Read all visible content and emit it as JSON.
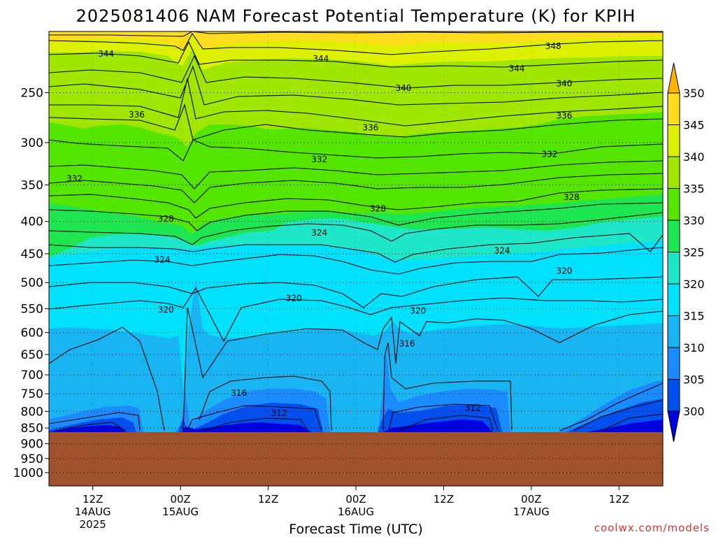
{
  "title": "2025081406 NAM Forecast Potential Temperature (K) for KPIH",
  "credit": "coolwx.com/models",
  "chart_data": {
    "type": "heatmap",
    "title": "2025081406 NAM Forecast Potential Temperature (K) for KPIH",
    "xlabel": "Forecast Time (UTC)",
    "ylabel": "",
    "x_ticks": [
      {
        "label": "12Z",
        "date": "14AUG",
        "year": "2025",
        "hour": 6
      },
      {
        "label": "00Z",
        "date": "15AUG",
        "year": "",
        "hour": 18
      },
      {
        "label": "12Z",
        "date": "",
        "year": "",
        "hour": 30
      },
      {
        "label": "00Z",
        "date": "16AUG",
        "year": "",
        "hour": 42
      },
      {
        "label": "12Z",
        "date": "",
        "year": "",
        "hour": 54
      },
      {
        "label": "00Z",
        "date": "17AUG",
        "year": "",
        "hour": 66
      },
      {
        "label": "12Z",
        "date": "",
        "year": "",
        "hour": 78
      }
    ],
    "x_range_hours": [
      0,
      84
    ],
    "y_ticks": [
      250,
      300,
      350,
      400,
      450,
      500,
      550,
      600,
      650,
      700,
      750,
      800,
      850,
      900,
      950,
      1000
    ],
    "y_range_hPa": [
      200,
      1050
    ],
    "y_scale": "log",
    "grid": true,
    "surface_pressure_hPa": 862,
    "colorbar": {
      "levels": [
        300,
        305,
        310,
        315,
        320,
        325,
        330,
        335,
        340,
        345,
        350
      ],
      "colors": [
        "#0000e0",
        "#0050f0",
        "#1a8cff",
        "#19b4f2",
        "#00e1ff",
        "#1ee6c8",
        "#1ee650",
        "#55e600",
        "#a0e600",
        "#dcf000",
        "#ffdc1e",
        "#ffb400"
      ]
    },
    "contour_levels": [
      312,
      316,
      320,
      324,
      328,
      332,
      336,
      340,
      344,
      348
    ],
    "contour_labels": [
      {
        "value": 344,
        "hour": 7.8,
        "p": 217
      },
      {
        "value": 344,
        "hour": 37.2,
        "p": 221
      },
      {
        "value": 348,
        "hour": 69.0,
        "p": 211
      },
      {
        "value": 344,
        "hour": 64.0,
        "p": 229
      },
      {
        "value": 340,
        "hour": 48.5,
        "p": 246
      },
      {
        "value": 340,
        "hour": 70.5,
        "p": 242
      },
      {
        "value": 336,
        "hour": 12.0,
        "p": 271
      },
      {
        "value": 336,
        "hour": 44.0,
        "p": 284
      },
      {
        "value": 336,
        "hour": 70.5,
        "p": 272
      },
      {
        "value": 332,
        "hour": 37.0,
        "p": 319
      },
      {
        "value": 332,
        "hour": 68.5,
        "p": 313
      },
      {
        "value": 332,
        "hour": 3.5,
        "p": 342
      },
      {
        "value": 328,
        "hour": 45.0,
        "p": 382
      },
      {
        "value": 328,
        "hour": 71.5,
        "p": 366
      },
      {
        "value": 328,
        "hour": 16.0,
        "p": 396
      },
      {
        "value": 324,
        "hour": 37.0,
        "p": 417
      },
      {
        "value": 324,
        "hour": 62.0,
        "p": 445
      },
      {
        "value": 324,
        "hour": 15.5,
        "p": 460
      },
      {
        "value": 320,
        "hour": 70.5,
        "p": 479
      },
      {
        "value": 320,
        "hour": 33.5,
        "p": 529
      },
      {
        "value": 320,
        "hour": 16.0,
        "p": 552
      },
      {
        "value": 320,
        "hour": 50.5,
        "p": 554
      },
      {
        "value": 316,
        "hour": 49.0,
        "p": 625
      },
      {
        "value": 316,
        "hour": 26.0,
        "p": 748
      },
      {
        "value": 312,
        "hour": 31.5,
        "p": 805
      },
      {
        "value": 312,
        "hour": 58.0,
        "p": 790
      }
    ]
  }
}
